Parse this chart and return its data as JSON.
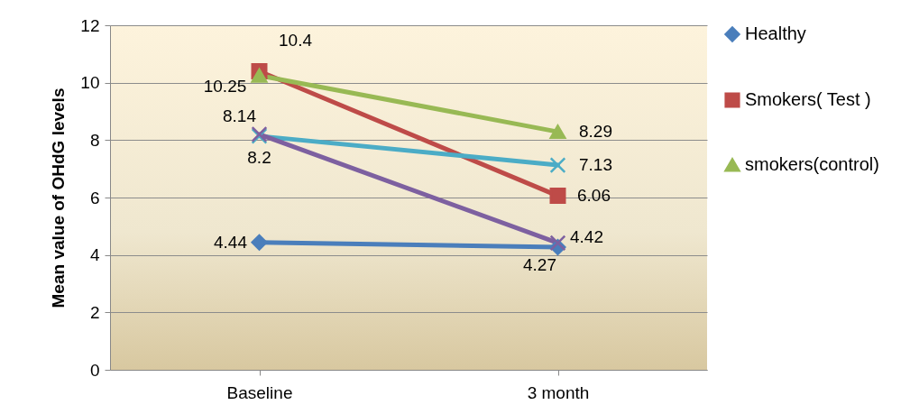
{
  "chart_data": {
    "type": "line",
    "ylabel": "Mean value of OHdG levels",
    "categories": [
      "Baseline",
      "3 month"
    ],
    "series": [
      {
        "name": "Healthy",
        "color": "#4a7ebb",
        "values": [
          4.44,
          4.27
        ],
        "marker": "diamond"
      },
      {
        "name": "Smokers( Test )",
        "color": "#be4b48",
        "values": [
          10.4,
          6.06
        ],
        "marker": "square"
      },
      {
        "name": "smokers(control)",
        "color": "#98b954",
        "values": [
          10.25,
          8.29
        ],
        "marker": "triangle"
      },
      {
        "color": "#4bacc6",
        "values": [
          8.14,
          7.13
        ],
        "marker": "cross"
      },
      {
        "color": "#7d60a0",
        "values": [
          8.2,
          4.42
        ],
        "marker": "cross"
      }
    ],
    "ylim": [
      0,
      12
    ],
    "yticks": [
      0,
      2,
      4,
      6,
      8,
      10,
      12
    ],
    "grid": "y",
    "legend": "right",
    "data_labels": true
  }
}
